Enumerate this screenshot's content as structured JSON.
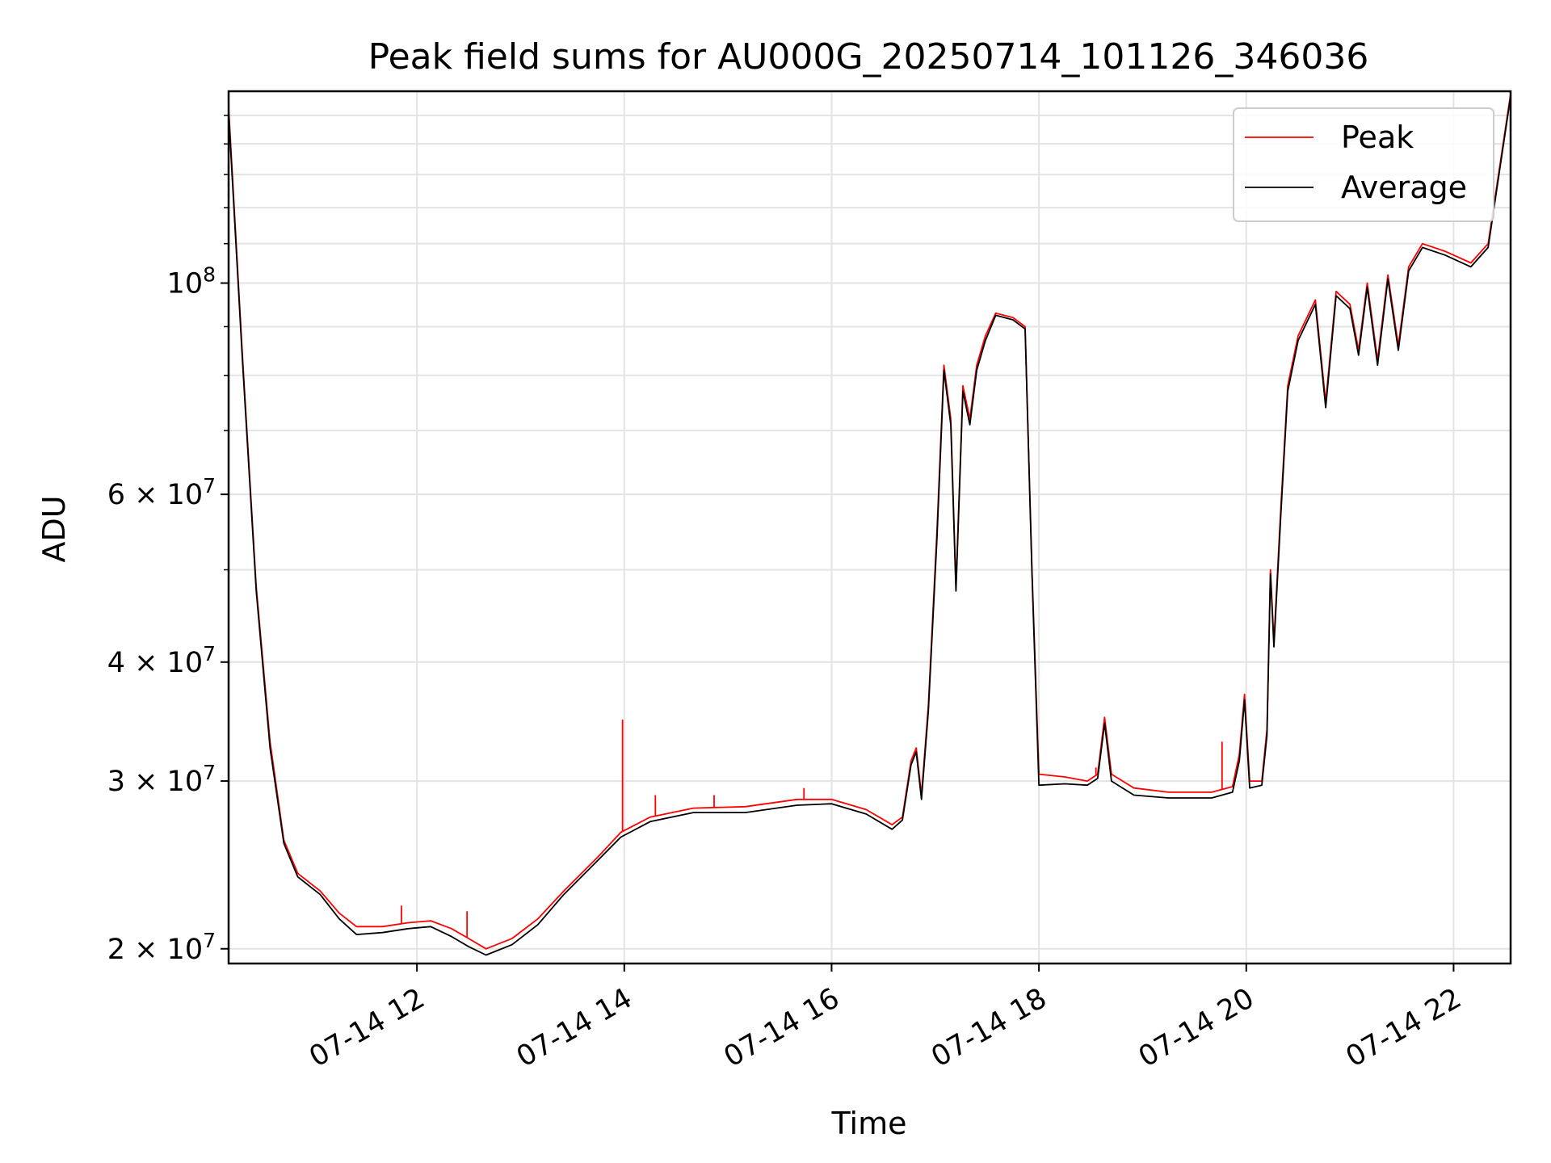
{
  "chart_data": {
    "type": "line",
    "title": "Peak field sums for AU000G_20250714_101126_346036",
    "xlabel": "Time",
    "ylabel": "ADU",
    "y_scale": "log",
    "grid": true,
    "legend_position": "top-right",
    "xlim": [
      "2025-07-14 10:11",
      "2025-07-14 22:33"
    ],
    "ylim": [
      19300000,
      159000000
    ],
    "x_ticks": [
      {
        "value": "2025-07-14 12:00",
        "label": "07-14 12"
      },
      {
        "value": "2025-07-14 14:00",
        "label": "07-14 14"
      },
      {
        "value": "2025-07-14 16:00",
        "label": "07-14 16"
      },
      {
        "value": "2025-07-14 18:00",
        "label": "07-14 18"
      },
      {
        "value": "2025-07-14 20:00",
        "label": "07-14 20"
      },
      {
        "value": "2025-07-14 22:00",
        "label": "07-14 22"
      }
    ],
    "y_ticks": [
      {
        "value": 20000000,
        "base": "2 × 10",
        "exp": "7"
      },
      {
        "value": 30000000,
        "base": "3 × 10",
        "exp": "7"
      },
      {
        "value": 40000000,
        "base": "4 × 10",
        "exp": "7"
      },
      {
        "value": 60000000,
        "base": "6 × 10",
        "exp": "7"
      },
      {
        "value": 100000000,
        "base": "10",
        "exp": "8"
      }
    ],
    "series": [
      {
        "name": "Peak",
        "color": "#ff0000",
        "points": [
          [
            "2025-07-14 10:11",
            153000000
          ],
          [
            "2025-07-14 10:19",
            84000000
          ],
          [
            "2025-07-14 10:27",
            48000000
          ],
          [
            "2025-07-14 10:35",
            33000000
          ],
          [
            "2025-07-14 10:43",
            26000000
          ],
          [
            "2025-07-14 10:51",
            24000000
          ],
          [
            "2025-07-14 11:04",
            23000000
          ],
          [
            "2025-07-14 11:15",
            21800000
          ],
          [
            "2025-07-14 11:25",
            21100000
          ],
          [
            "2025-07-14 11:40",
            21100000
          ],
          [
            "2025-07-14 11:55",
            21300000
          ],
          [
            "2025-07-14 12:08",
            21400000
          ],
          [
            "2025-07-14 12:20",
            21000000
          ],
          [
            "2025-07-14 12:30",
            20500000
          ],
          [
            "2025-07-14 12:40",
            20000000
          ],
          [
            "2025-07-14 12:55",
            20500000
          ],
          [
            "2025-07-14 13:10",
            21500000
          ],
          [
            "2025-07-14 13:25",
            23000000
          ],
          [
            "2025-07-14 13:45",
            25000000
          ],
          [
            "2025-07-14 13:58",
            26500000
          ],
          [
            "2025-07-14 14:15",
            27500000
          ],
          [
            "2025-07-14 14:40",
            28100000
          ],
          [
            "2025-07-14 15:10",
            28200000
          ],
          [
            "2025-07-14 15:40",
            28700000
          ],
          [
            "2025-07-14 16:00",
            28700000
          ],
          [
            "2025-07-14 16:20",
            28000000
          ],
          [
            "2025-07-14 16:35",
            27000000
          ],
          [
            "2025-07-14 16:41",
            27500000
          ],
          [
            "2025-07-14 16:46",
            31500000
          ],
          [
            "2025-07-14 16:49",
            32500000
          ],
          [
            "2025-07-14 16:52",
            29000000
          ],
          [
            "2025-07-14 16:56",
            36000000
          ],
          [
            "2025-07-14 17:01",
            55000000
          ],
          [
            "2025-07-14 17:05",
            82000000
          ],
          [
            "2025-07-14 17:09",
            72000000
          ],
          [
            "2025-07-14 17:12",
            48000000
          ],
          [
            "2025-07-14 17:16",
            78000000
          ],
          [
            "2025-07-14 17:20",
            72000000
          ],
          [
            "2025-07-14 17:24",
            82000000
          ],
          [
            "2025-07-14 17:29",
            88000000
          ],
          [
            "2025-07-14 17:35",
            93000000
          ],
          [
            "2025-07-14 17:45",
            92000000
          ],
          [
            "2025-07-14 17:52",
            90000000
          ],
          [
            "2025-07-14 17:56",
            50000000
          ],
          [
            "2025-07-14 18:00",
            30500000
          ],
          [
            "2025-07-14 18:15",
            30300000
          ],
          [
            "2025-07-14 18:28",
            30000000
          ],
          [
            "2025-07-14 18:34",
            30500000
          ],
          [
            "2025-07-14 18:38",
            35000000
          ],
          [
            "2025-07-14 18:42",
            30500000
          ],
          [
            "2025-07-14 18:55",
            29500000
          ],
          [
            "2025-07-14 19:15",
            29200000
          ],
          [
            "2025-07-14 19:40",
            29200000
          ],
          [
            "2025-07-14 19:52",
            29600000
          ],
          [
            "2025-07-14 19:56",
            32000000
          ],
          [
            "2025-07-14 19:59",
            37000000
          ],
          [
            "2025-07-14 20:02",
            30000000
          ],
          [
            "2025-07-14 20:09",
            30000000
          ],
          [
            "2025-07-14 20:12",
            34000000
          ],
          [
            "2025-07-14 20:14",
            50000000
          ],
          [
            "2025-07-14 20:16",
            42000000
          ],
          [
            "2025-07-14 20:20",
            58000000
          ],
          [
            "2025-07-14 20:24",
            78000000
          ],
          [
            "2025-07-14 20:30",
            88000000
          ],
          [
            "2025-07-14 20:40",
            96000000
          ],
          [
            "2025-07-14 20:46",
            75000000
          ],
          [
            "2025-07-14 20:52",
            98000000
          ],
          [
            "2025-07-14 21:00",
            95000000
          ],
          [
            "2025-07-14 21:05",
            85000000
          ],
          [
            "2025-07-14 21:10",
            100000000
          ],
          [
            "2025-07-14 21:16",
            83000000
          ],
          [
            "2025-07-14 21:22",
            102000000
          ],
          [
            "2025-07-14 21:28",
            86000000
          ],
          [
            "2025-07-14 21:34",
            104000000
          ],
          [
            "2025-07-14 21:42",
            110000000
          ],
          [
            "2025-07-14 21:55",
            108000000
          ],
          [
            "2025-07-14 22:10",
            105000000
          ],
          [
            "2025-07-14 22:20",
            110000000
          ],
          [
            "2025-07-14 22:26",
            130000000
          ],
          [
            "2025-07-14 22:33",
            158000000
          ]
        ]
      },
      {
        "name": "Average",
        "color": "#000000",
        "points": [
          [
            "2025-07-14 10:11",
            151000000
          ],
          [
            "2025-07-14 10:19",
            83000000
          ],
          [
            "2025-07-14 10:27",
            47500000
          ],
          [
            "2025-07-14 10:35",
            32500000
          ],
          [
            "2025-07-14 10:43",
            25800000
          ],
          [
            "2025-07-14 10:51",
            23800000
          ],
          [
            "2025-07-14 11:04",
            22800000
          ],
          [
            "2025-07-14 11:15",
            21500000
          ],
          [
            "2025-07-14 11:25",
            20700000
          ],
          [
            "2025-07-14 11:40",
            20800000
          ],
          [
            "2025-07-14 11:55",
            21000000
          ],
          [
            "2025-07-14 12:08",
            21100000
          ],
          [
            "2025-07-14 12:20",
            20600000
          ],
          [
            "2025-07-14 12:30",
            20100000
          ],
          [
            "2025-07-14 12:40",
            19700000
          ],
          [
            "2025-07-14 12:55",
            20200000
          ],
          [
            "2025-07-14 13:10",
            21200000
          ],
          [
            "2025-07-14 13:25",
            22800000
          ],
          [
            "2025-07-14 13:45",
            24800000
          ],
          [
            "2025-07-14 13:58",
            26200000
          ],
          [
            "2025-07-14 14:15",
            27200000
          ],
          [
            "2025-07-14 14:40",
            27800000
          ],
          [
            "2025-07-14 15:10",
            27800000
          ],
          [
            "2025-07-14 15:40",
            28300000
          ],
          [
            "2025-07-14 16:00",
            28400000
          ],
          [
            "2025-07-14 16:20",
            27700000
          ],
          [
            "2025-07-14 16:35",
            26700000
          ],
          [
            "2025-07-14 16:41",
            27300000
          ],
          [
            "2025-07-14 16:46",
            31200000
          ],
          [
            "2025-07-14 16:49",
            32200000
          ],
          [
            "2025-07-14 16:52",
            28700000
          ],
          [
            "2025-07-14 16:56",
            35500000
          ],
          [
            "2025-07-14 17:01",
            54000000
          ],
          [
            "2025-07-14 17:05",
            81000000
          ],
          [
            "2025-07-14 17:09",
            71000000
          ],
          [
            "2025-07-14 17:12",
            47500000
          ],
          [
            "2025-07-14 17:16",
            77000000
          ],
          [
            "2025-07-14 17:20",
            71000000
          ],
          [
            "2025-07-14 17:24",
            81000000
          ],
          [
            "2025-07-14 17:29",
            87000000
          ],
          [
            "2025-07-14 17:35",
            92500000
          ],
          [
            "2025-07-14 17:45",
            91500000
          ],
          [
            "2025-07-14 17:52",
            89500000
          ],
          [
            "2025-07-14 17:56",
            49500000
          ],
          [
            "2025-07-14 18:00",
            29700000
          ],
          [
            "2025-07-14 18:15",
            29800000
          ],
          [
            "2025-07-14 18:28",
            29700000
          ],
          [
            "2025-07-14 18:34",
            30200000
          ],
          [
            "2025-07-14 18:38",
            34500000
          ],
          [
            "2025-07-14 18:42",
            30000000
          ],
          [
            "2025-07-14 18:55",
            29000000
          ],
          [
            "2025-07-14 19:15",
            28800000
          ],
          [
            "2025-07-14 19:40",
            28800000
          ],
          [
            "2025-07-14 19:52",
            29200000
          ],
          [
            "2025-07-14 19:56",
            31500000
          ],
          [
            "2025-07-14 19:59",
            36500000
          ],
          [
            "2025-07-14 20:02",
            29500000
          ],
          [
            "2025-07-14 20:09",
            29700000
          ],
          [
            "2025-07-14 20:12",
            33500000
          ],
          [
            "2025-07-14 20:14",
            49500000
          ],
          [
            "2025-07-14 20:16",
            41500000
          ],
          [
            "2025-07-14 20:20",
            57000000
          ],
          [
            "2025-07-14 20:24",
            77000000
          ],
          [
            "2025-07-14 20:30",
            87000000
          ],
          [
            "2025-07-14 20:40",
            95000000
          ],
          [
            "2025-07-14 20:46",
            74000000
          ],
          [
            "2025-07-14 20:52",
            97000000
          ],
          [
            "2025-07-14 21:00",
            94000000
          ],
          [
            "2025-07-14 21:05",
            84000000
          ],
          [
            "2025-07-14 21:10",
            99000000
          ],
          [
            "2025-07-14 21:16",
            82000000
          ],
          [
            "2025-07-14 21:22",
            101000000
          ],
          [
            "2025-07-14 21:28",
            85000000
          ],
          [
            "2025-07-14 21:34",
            103000000
          ],
          [
            "2025-07-14 21:42",
            109000000
          ],
          [
            "2025-07-14 21:55",
            107000000
          ],
          [
            "2025-07-14 22:10",
            104000000
          ],
          [
            "2025-07-14 22:20",
            109000000
          ],
          [
            "2025-07-14 22:26",
            129000000
          ],
          [
            "2025-07-14 22:33",
            157000000
          ]
        ]
      }
    ],
    "spikes": [
      {
        "series": "Peak",
        "x": "2025-07-14 11:51",
        "y": 22200000
      },
      {
        "series": "Peak",
        "x": "2025-07-14 12:29",
        "y": 21900000
      },
      {
        "series": "Peak",
        "x": "2025-07-14 13:59",
        "y": 34800000
      },
      {
        "series": "Peak",
        "x": "2025-07-14 14:18",
        "y": 29000000
      },
      {
        "series": "Peak",
        "x": "2025-07-14 14:52",
        "y": 29000000
      },
      {
        "series": "Peak",
        "x": "2025-07-14 15:44",
        "y": 29500000
      },
      {
        "series": "Peak",
        "x": "2025-07-14 18:33",
        "y": 31000000
      },
      {
        "series": "Peak",
        "x": "2025-07-14 19:46",
        "y": 33000000
      }
    ]
  }
}
